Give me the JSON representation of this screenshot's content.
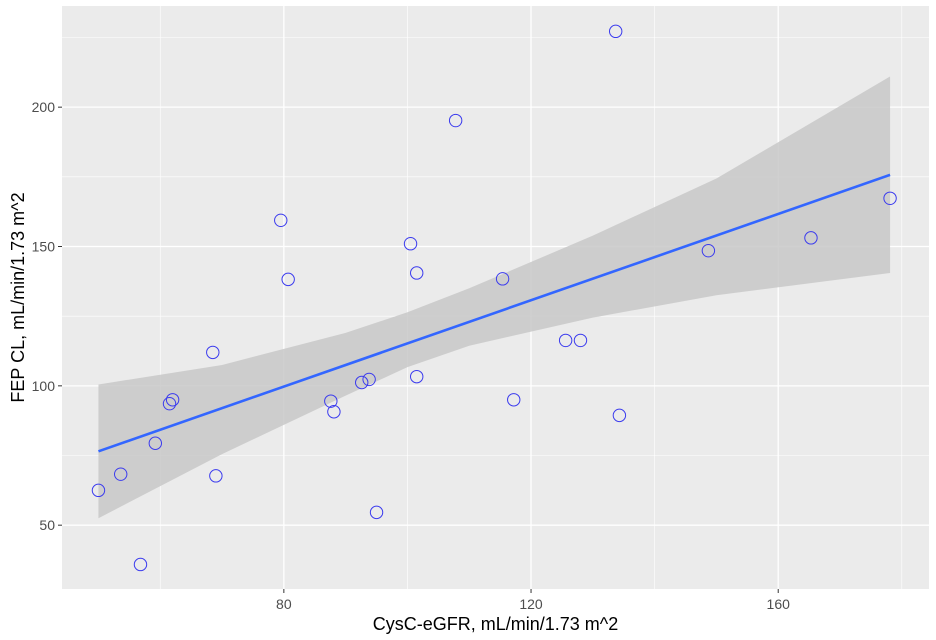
{
  "chart_data": {
    "type": "scatter",
    "title": "",
    "xlabel": "CysC-eGFR, mL/min/1.73 m^2",
    "ylabel": "FEP CL, mL/min/1.73 m^2",
    "xlim": [
      44.1,
      184.4
    ],
    "ylim": [
      27.1,
      236.3
    ],
    "x_ticks": [
      80,
      120,
      160
    ],
    "x_tick_labels": [
      "80",
      "120",
      "160"
    ],
    "y_ticks": [
      50,
      100,
      150,
      200
    ],
    "y_tick_labels": [
      "50",
      "100",
      "150",
      "200"
    ],
    "grid": true,
    "legend": "none",
    "points": [
      {
        "x": 50.0,
        "y": 62.5
      },
      {
        "x": 53.6,
        "y": 68.3
      },
      {
        "x": 56.8,
        "y": 35.9
      },
      {
        "x": 59.2,
        "y": 79.4
      },
      {
        "x": 61.5,
        "y": 93.6
      },
      {
        "x": 62.0,
        "y": 95.0
      },
      {
        "x": 68.5,
        "y": 112.0
      },
      {
        "x": 69.0,
        "y": 67.7
      },
      {
        "x": 79.5,
        "y": 159.4
      },
      {
        "x": 80.7,
        "y": 138.2
      },
      {
        "x": 87.6,
        "y": 94.5
      },
      {
        "x": 88.1,
        "y": 90.7
      },
      {
        "x": 92.6,
        "y": 101.2
      },
      {
        "x": 93.8,
        "y": 102.3
      },
      {
        "x": 95.0,
        "y": 54.6
      },
      {
        "x": 100.5,
        "y": 151.0
      },
      {
        "x": 101.5,
        "y": 140.5
      },
      {
        "x": 101.5,
        "y": 103.3
      },
      {
        "x": 107.8,
        "y": 195.2
      },
      {
        "x": 115.4,
        "y": 138.4
      },
      {
        "x": 117.2,
        "y": 95.0
      },
      {
        "x": 125.6,
        "y": 116.3
      },
      {
        "x": 128.0,
        "y": 116.3
      },
      {
        "x": 133.7,
        "y": 227.2
      },
      {
        "x": 134.3,
        "y": 89.4
      },
      {
        "x": 148.7,
        "y": 148.5
      },
      {
        "x": 165.3,
        "y": 153.1
      },
      {
        "x": 178.1,
        "y": 167.3
      }
    ],
    "fit_line": {
      "x": [
        50.0,
        178.1
      ],
      "y": [
        76.5,
        175.7
      ]
    },
    "confidence_band": {
      "x": [
        50,
        70,
        90,
        100,
        110,
        130,
        150,
        178.1
      ],
      "lower": [
        52.5,
        75.5,
        96.5,
        106.7,
        114.4,
        124.5,
        132.5,
        140.5
      ],
      "upper": [
        100.5,
        107.5,
        119.0,
        126.4,
        135.0,
        153.9,
        174.4,
        211.0
      ]
    },
    "colors": {
      "panel": "#ebebeb",
      "grid": "#ffffff",
      "point_stroke": "#3a3aee",
      "fit_line": "#3366ff",
      "band": "#c8c8c8"
    }
  }
}
